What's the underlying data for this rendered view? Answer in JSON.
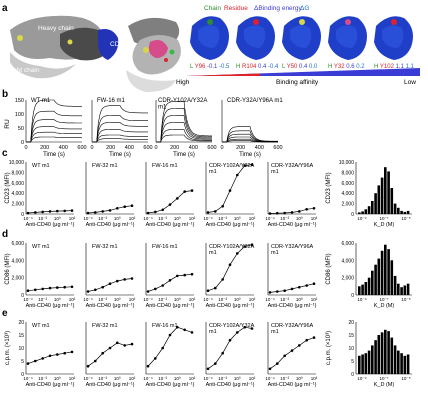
{
  "panel_letters": {
    "a": "a",
    "b": "b",
    "c": "c",
    "d": "d",
    "e": "e"
  },
  "panel_a": {
    "labels": {
      "heavy_chain": "Heavy chain",
      "cd40": "CD40",
      "light_chain": "Light chain",
      "legend_chain": "Chain",
      "legend_residue": "Residue",
      "legend_binding": "ΔBinding energy",
      "legend_dg": "ΔG",
      "high": "High",
      "low": "Low",
      "affinity": "Binding affinity"
    },
    "mutations": [
      {
        "chain": "L",
        "residue": "Y96",
        "v1": "-0.1",
        "v2": "-0.5"
      },
      {
        "chain": "H",
        "residue": "R104",
        "v1": "0.4",
        "v2": "-0.4"
      },
      {
        "chain": "L",
        "residue": "Y50",
        "v1": "0.4",
        "v2": "0.0"
      },
      {
        "chain": "H",
        "residue": "Y32",
        "v1": "0.6",
        "v2": "0.2"
      },
      {
        "chain": "H",
        "residue": "Y102",
        "v1": "1.1",
        "v2": "1.1"
      }
    ],
    "colors": {
      "chain": "#2e8b2e",
      "residue": "#e0202a",
      "binding": "#3b3bd6",
      "dg": "#1f6fd1",
      "surface": "#1f3fc8"
    }
  },
  "panel_b": {
    "y_label": "RU",
    "x_label": "Time (s)",
    "y_ticks": [
      "0",
      "50",
      "100",
      "150"
    ],
    "x_ticks": [
      "0",
      "200",
      "400",
      "600"
    ],
    "titles": [
      "WT m1",
      "FW-16 m1",
      "CDR-Y102A/Y32A m1",
      "CDR-Y32A/Y96A m1"
    ]
  },
  "rows": [
    {
      "letter": "c",
      "y_label": "CD23 (MFI)",
      "y_ticks": [
        "0",
        "2,000",
        "4,000",
        "6,000",
        "8,000",
        "10,000"
      ],
      "ymax": 10000,
      "x_label": "Anti-CD40 (μg ml⁻¹)",
      "hist_y_label": "CD23 (MFI)",
      "hist_y_ticks": [
        "0",
        "2,000",
        "4,000",
        "6,000",
        "8,000",
        "10,000"
      ],
      "hist_x_label": "K_D (M)",
      "titles": [
        "WT m1",
        "FW-32 m1",
        "FW-16 m1",
        "CDR-Y102A/Y32A m1",
        "CDR-Y32A/Y96A m1"
      ],
      "curves": [
        [
          200,
          300,
          400,
          500,
          550,
          600,
          650
        ],
        [
          200,
          300,
          500,
          700,
          1100,
          1400,
          1600
        ],
        [
          200,
          400,
          800,
          1800,
          3000,
          4300,
          4500
        ],
        [
          300,
          500,
          1500,
          4500,
          7500,
          9300,
          9500
        ],
        [
          100,
          150,
          200,
          300,
          500,
          900,
          1100
        ]
      ],
      "hist": [
        300,
        500,
        900,
        1500,
        2500,
        4000,
        5500,
        7000,
        9000,
        8200,
        5000,
        2000,
        1200,
        600,
        400,
        600
      ]
    },
    {
      "letter": "d",
      "y_label": "CD86 (MFI)",
      "y_ticks": [
        "0",
        "2,000",
        "4,000",
        "6,000"
      ],
      "ymax": 6000,
      "x_label": "Anti-CD40 (μg ml⁻¹)",
      "hist_y_label": "CD86 (MFI)",
      "hist_y_ticks": [
        "0",
        "2,000",
        "4,000",
        "6,000"
      ],
      "hist_x_label": "K_D (M)",
      "titles": [
        "WT m1",
        "FW-32 m1",
        "FW-16 m1",
        "CDR-Y102A/Y32A m1",
        "CDR-Y32A/Y96A m1"
      ],
      "curves": [
        [
          500,
          600,
          700,
          800,
          850,
          900,
          950
        ],
        [
          400,
          600,
          900,
          1300,
          1600,
          1800,
          1900
        ],
        [
          400,
          700,
          1100,
          1700,
          2200,
          2300,
          2400
        ],
        [
          500,
          800,
          1800,
          3500,
          4800,
          5600,
          5800
        ],
        [
          300,
          400,
          500,
          700,
          900,
          1100,
          1300
        ]
      ],
      "hist": [
        1000,
        1200,
        1500,
        2000,
        2800,
        3500,
        4200,
        5100,
        5800,
        5300,
        4000,
        2200,
        1300,
        900,
        1100,
        1300
      ]
    },
    {
      "letter": "e",
      "y_label": "c.p.m. (×10³)",
      "y_ticks": [
        "0",
        "5",
        "10",
        "15",
        "20"
      ],
      "ymax": 20,
      "x_label": "Anti-CD40 (μg ml⁻¹)",
      "hist_y_label": "c.p.m. (×10³)",
      "hist_y_ticks": [
        "0",
        "5",
        "10",
        "15",
        "20"
      ],
      "hist_x_label": "K_D (M)",
      "titles": [
        "WT m1",
        "FW-32 m1",
        "FW-16 m1",
        "CDR-Y102A/Y32A m1",
        "CDR-Y32A/Y96A m1"
      ],
      "curves": [
        [
          4,
          5,
          6,
          7,
          7.5,
          8,
          8.5
        ],
        [
          3,
          5,
          8,
          10,
          12,
          11,
          11.5
        ],
        [
          3,
          6,
          10,
          15,
          18,
          17,
          16
        ],
        [
          2,
          4,
          8,
          13,
          16,
          18,
          17.5
        ],
        [
          2,
          4,
          7,
          9,
          11,
          13,
          14
        ]
      ],
      "hist": [
        7,
        7.5,
        8,
        9,
        11,
        13,
        15,
        16,
        17,
        16.5,
        14,
        11,
        9,
        8,
        7,
        7.5
      ]
    }
  ],
  "x_ticks": [
    "10⁻⁴",
    "10⁻²",
    "10⁰",
    "10²"
  ],
  "hist_x_ticks": [
    "10⁻⁹",
    "10⁻⁷",
    "10⁻⁵"
  ],
  "chart_data": [
    {
      "type": "line",
      "title": "",
      "xlabel": "Time (s)",
      "ylabel": "RU",
      "panel": "b"
    },
    {
      "type": "line",
      "panel": "c",
      "xlabel": "Anti-CD40 (μg ml⁻¹)",
      "ylabel": "CD23 (MFI)",
      "x": [
        0.0001,
        0.001,
        0.01,
        0.1,
        1,
        10,
        100
      ],
      "series": [
        {
          "name": "WT m1",
          "values": [
            200,
            300,
            400,
            500,
            550,
            600,
            650
          ]
        },
        {
          "name": "FW-32 m1",
          "values": [
            200,
            300,
            500,
            700,
            1100,
            1400,
            1600
          ]
        },
        {
          "name": "FW-16 m1",
          "values": [
            200,
            400,
            800,
            1800,
            3000,
            4300,
            4500
          ]
        },
        {
          "name": "CDR-Y102A/Y32A m1",
          "values": [
            300,
            500,
            1500,
            4500,
            7500,
            9300,
            9500
          ]
        },
        {
          "name": "CDR-Y32A/Y96A m1",
          "values": [
            100,
            150,
            200,
            300,
            500,
            900,
            1100
          ]
        }
      ]
    },
    {
      "type": "line",
      "panel": "d",
      "xlabel": "Anti-CD40 (μg ml⁻¹)",
      "ylabel": "CD86 (MFI)",
      "x": [
        0.0001,
        0.001,
        0.01,
        0.1,
        1,
        10,
        100
      ],
      "series": [
        {
          "name": "WT m1",
          "values": [
            500,
            600,
            700,
            800,
            850,
            900,
            950
          ]
        },
        {
          "name": "FW-32 m1",
          "values": [
            400,
            600,
            900,
            1300,
            1600,
            1800,
            1900
          ]
        },
        {
          "name": "FW-16 m1",
          "values": [
            400,
            700,
            1100,
            1700,
            2200,
            2300,
            2400
          ]
        },
        {
          "name": "CDR-Y102A/Y32A m1",
          "values": [
            500,
            800,
            1800,
            3500,
            4800,
            5600,
            5800
          ]
        },
        {
          "name": "CDR-Y32A/Y96A m1",
          "values": [
            300,
            400,
            500,
            700,
            900,
            1100,
            1300
          ]
        }
      ]
    },
    {
      "type": "line",
      "panel": "e",
      "xlabel": "Anti-CD40 (μg ml⁻¹)",
      "ylabel": "c.p.m. (×10³)",
      "x": [
        0.0001,
        0.001,
        0.01,
        0.1,
        1,
        10,
        100
      ],
      "series": [
        {
          "name": "WT m1",
          "values": [
            4,
            5,
            6,
            7,
            7.5,
            8,
            8.5
          ]
        },
        {
          "name": "FW-32 m1",
          "values": [
            3,
            5,
            8,
            10,
            12,
            11,
            11.5
          ]
        },
        {
          "name": "FW-16 m1",
          "values": [
            3,
            6,
            10,
            15,
            18,
            17,
            16
          ]
        },
        {
          "name": "CDR-Y102A/Y32A m1",
          "values": [
            2,
            4,
            8,
            13,
            16,
            18,
            17.5
          ]
        },
        {
          "name": "CDR-Y32A/Y96A m1",
          "values": [
            2,
            4,
            7,
            9,
            11,
            13,
            14
          ]
        }
      ]
    }
  ]
}
